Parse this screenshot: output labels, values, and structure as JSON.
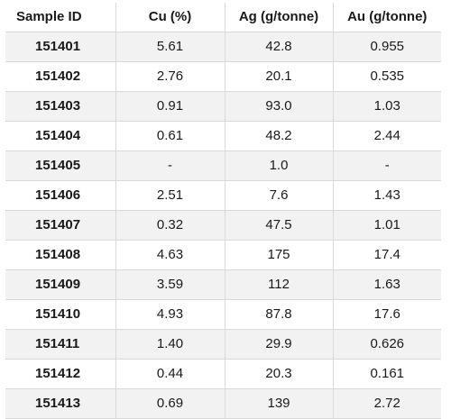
{
  "table": {
    "headers": [
      "Sample ID",
      "Cu (%)",
      "Ag (g/tonne)",
      "Au (g/tonne)"
    ],
    "rows": [
      [
        "151401",
        "5.61",
        "42.8",
        "0.955"
      ],
      [
        "151402",
        "2.76",
        "20.1",
        "0.535"
      ],
      [
        "151403",
        "0.91",
        "93.0",
        "1.03"
      ],
      [
        "151404",
        "0.61",
        "48.2",
        "2.44"
      ],
      [
        "151405",
        "-",
        "1.0",
        "-"
      ],
      [
        "151406",
        "2.51",
        "7.6",
        "1.43"
      ],
      [
        "151407",
        "0.32",
        "47.5",
        "1.01"
      ],
      [
        "151408",
        "4.63",
        "175",
        "17.4"
      ],
      [
        "151409",
        "3.59",
        "112",
        "1.63"
      ],
      [
        "151410",
        "4.93",
        "87.8",
        "17.6"
      ],
      [
        "151411",
        "1.40",
        "29.9",
        "0.626"
      ],
      [
        "151412",
        "0.44",
        "20.3",
        "0.161"
      ],
      [
        "151413",
        "0.69",
        "139",
        "2.72"
      ]
    ]
  }
}
